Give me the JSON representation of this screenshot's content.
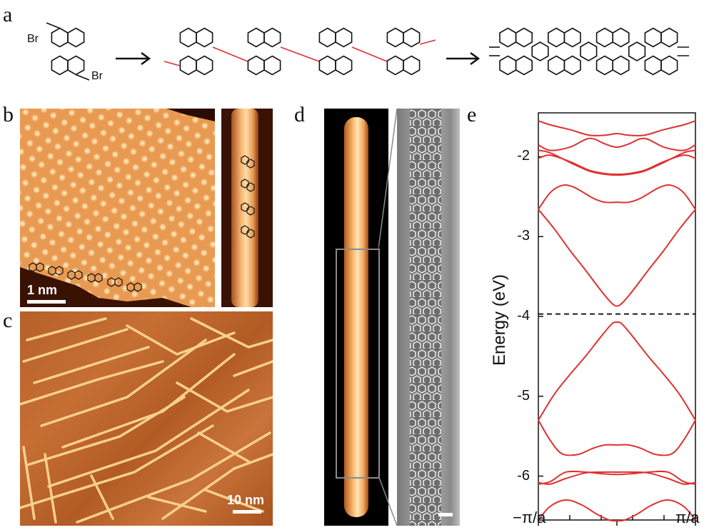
{
  "panels": {
    "a": "a",
    "b": "b",
    "c": "c",
    "d": "d",
    "e": "e"
  },
  "panel_a": {
    "br_top": "Br",
    "br_bottom": "Br"
  },
  "panel_b": {
    "scale_label": "1 nm"
  },
  "panel_c": {
    "scale_label": "10 nm"
  },
  "colors": {
    "band_line": "#e03030",
    "stm_orange": "#f3a85e",
    "stm_dark": "#5a1e06",
    "fermi_line": "#000000"
  },
  "chart_data": {
    "type": "line",
    "title": "",
    "xlabel": "",
    "ylabel": "Energy (eV)",
    "xlim": [
      -1,
      1
    ],
    "ylim": [
      -6.55,
      -1.45
    ],
    "x_tick_labels": [
      "−π/a",
      "π/a"
    ],
    "y_ticks": [
      -2,
      -3,
      -4,
      -5,
      -6
    ],
    "y_tick_labels": [
      "-2",
      "-3",
      "-4",
      "-5",
      "-6"
    ],
    "fermi_level": -3.97,
    "series": [
      {
        "x": [
          -1,
          -0.85,
          -0.6,
          -0.35,
          -0.15,
          0,
          0.15,
          0.35,
          0.6,
          0.85,
          1
        ],
        "values": [
          -1.55,
          -1.6,
          -1.66,
          -1.73,
          -1.73,
          -1.71,
          -1.73,
          -1.73,
          -1.66,
          -1.6,
          -1.55
        ]
      },
      {
        "x": [
          -1,
          -0.85,
          -0.6,
          -0.35,
          -0.15,
          0,
          0.15,
          0.35,
          0.6,
          0.85,
          1
        ],
        "values": [
          -1.85,
          -1.92,
          -1.88,
          -1.77,
          -1.84,
          -1.88,
          -1.84,
          -1.77,
          -1.88,
          -1.92,
          -1.85
        ]
      },
      {
        "x": [
          -1,
          -0.85,
          -0.6,
          -0.35,
          -0.15,
          0,
          0.15,
          0.35,
          0.6,
          0.85,
          1
        ],
        "values": [
          -1.92,
          -1.95,
          -2.07,
          -2.18,
          -2.22,
          -2.23,
          -2.22,
          -2.18,
          -2.07,
          -1.95,
          -1.92
        ]
      },
      {
        "x": [
          -1,
          -0.85,
          -0.6,
          -0.35,
          -0.15,
          0,
          0.15,
          0.35,
          0.6,
          0.85,
          1
        ],
        "values": [
          -2.02,
          -1.98,
          -2.06,
          -2.17,
          -2.21,
          -2.22,
          -2.21,
          -2.17,
          -2.06,
          -1.98,
          -2.02
        ]
      },
      {
        "x": [
          -1,
          -0.85,
          -0.7,
          -0.55,
          -0.3,
          -0.15,
          0,
          0.15,
          0.3,
          0.55,
          0.7,
          0.85,
          1
        ],
        "values": [
          -2.66,
          -2.45,
          -2.36,
          -2.38,
          -2.52,
          -2.57,
          -2.57,
          -2.57,
          -2.52,
          -2.38,
          -2.36,
          -2.45,
          -2.66
        ]
      },
      {
        "x": [
          -1,
          -0.8,
          -0.6,
          -0.4,
          -0.2,
          -0.07,
          0,
          0.07,
          0.2,
          0.4,
          0.6,
          0.8,
          1
        ],
        "values": [
          -2.66,
          -2.9,
          -3.17,
          -3.42,
          -3.68,
          -3.83,
          -3.87,
          -3.83,
          -3.68,
          -3.42,
          -3.17,
          -2.9,
          -2.66
        ]
      },
      {
        "x": [
          -1,
          -0.8,
          -0.6,
          -0.4,
          -0.2,
          -0.07,
          0,
          0.07,
          0.2,
          0.4,
          0.6,
          0.8,
          1
        ],
        "values": [
          -5.3,
          -4.98,
          -4.73,
          -4.5,
          -4.25,
          -4.1,
          -4.07,
          -4.1,
          -4.25,
          -4.5,
          -4.73,
          -4.98,
          -5.3
        ]
      },
      {
        "x": [
          -1,
          -0.85,
          -0.7,
          -0.5,
          -0.3,
          -0.15,
          0,
          0.15,
          0.3,
          0.5,
          0.7,
          0.85,
          1
        ],
        "values": [
          -5.3,
          -5.55,
          -5.72,
          -5.73,
          -5.65,
          -5.61,
          -5.61,
          -5.61,
          -5.65,
          -5.73,
          -5.72,
          -5.55,
          -5.3
        ]
      },
      {
        "x": [
          -1,
          -0.85,
          -0.65,
          -0.4,
          -0.2,
          0,
          0.2,
          0.4,
          0.65,
          0.85,
          1
        ],
        "values": [
          -6.1,
          -6.07,
          -5.95,
          -5.95,
          -5.97,
          -5.98,
          -5.97,
          -5.95,
          -5.95,
          -6.07,
          -6.1
        ]
      },
      {
        "x": [
          -1,
          -0.85,
          -0.65,
          -0.4,
          -0.2,
          0,
          0.2,
          0.4,
          0.65,
          0.85,
          1
        ],
        "values": [
          -6.08,
          -6.1,
          -6.03,
          -5.96,
          -5.95,
          -5.95,
          -5.95,
          -5.96,
          -6.03,
          -6.1,
          -6.08
        ]
      },
      {
        "x": [
          -1,
          -0.85,
          -0.65,
          -0.45,
          -0.25,
          -0.1,
          0,
          0.1,
          0.25,
          0.45,
          0.65,
          0.85,
          1
        ],
        "values": [
          -6.55,
          -6.38,
          -6.3,
          -6.36,
          -6.48,
          -6.55,
          -6.56,
          -6.55,
          -6.48,
          -6.36,
          -6.3,
          -6.38,
          -6.55
        ]
      }
    ]
  }
}
